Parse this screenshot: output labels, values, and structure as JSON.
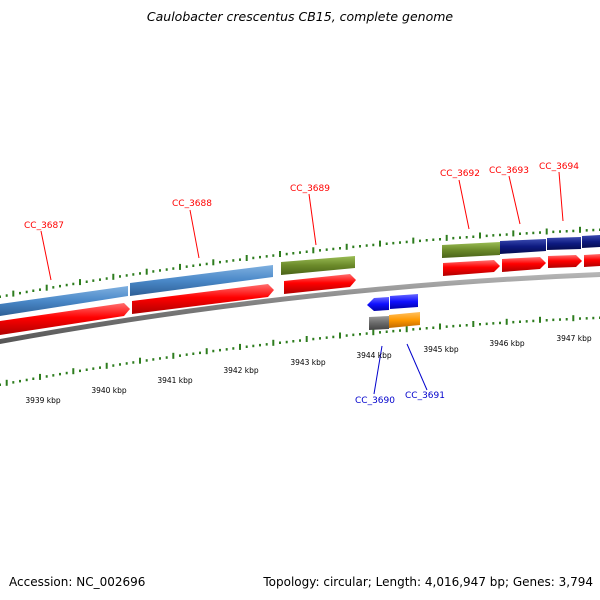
{
  "title": "Caulobacter crescentus CB15, complete genome",
  "footer": {
    "accession": "Accession: NC_002696",
    "summary": "Topology: circular; Length: 4,016,947 bp; Genes: 3,794"
  },
  "colors": {
    "forward_label": "#ff0000",
    "reverse_label": "#0000cc",
    "tick": "#2e7d1e",
    "backbone": "#808080",
    "feature_light_blue": "#4a88c8",
    "feature_red": "#ff0000",
    "feature_olive": "#6b8a2a",
    "feature_navy": "#0d1a80",
    "feature_blue": "#1010ff",
    "feature_grey": "#6a6a6a",
    "feature_orange": "#ff9900"
  },
  "axis_labels": [
    "3939 kbp",
    "3940 kbp",
    "3941 kbp",
    "3942 kbp",
    "3943 kbp",
    "3944 kbp",
    "3945 kbp",
    "3946 kbp",
    "3947 kbp"
  ],
  "genes": [
    {
      "label": "CC_3687",
      "strand": "forward"
    },
    {
      "label": "CC_3688",
      "strand": "forward"
    },
    {
      "label": "CC_3689",
      "strand": "forward"
    },
    {
      "label": "CC_3692",
      "strand": "forward"
    },
    {
      "label": "CC_3693",
      "strand": "forward"
    },
    {
      "label": "CC_3694",
      "strand": "forward"
    },
    {
      "label": "CC_3690",
      "strand": "reverse"
    },
    {
      "label": "CC_3691",
      "strand": "reverse"
    }
  ]
}
